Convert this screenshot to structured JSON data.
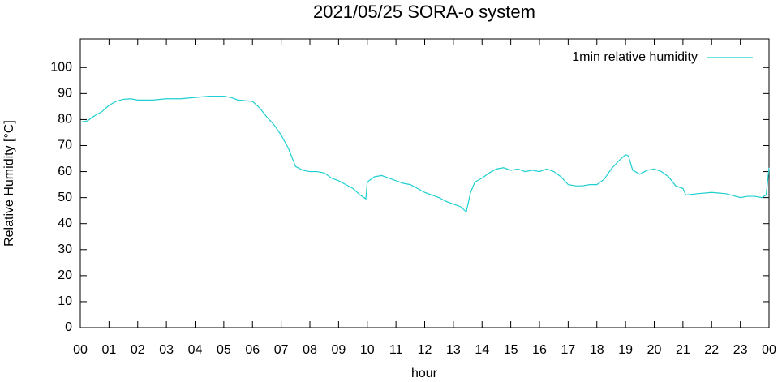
{
  "chart_data": {
    "type": "line",
    "title": "2021/05/25 SORA-o system",
    "xlabel": "hour",
    "ylabel": "Relative Humidity [°C]",
    "xlim": [
      0,
      24
    ],
    "ylim": [
      0,
      111
    ],
    "xticks": [
      {
        "value": 0,
        "label": "00"
      },
      {
        "value": 1,
        "label": "01"
      },
      {
        "value": 2,
        "label": "02"
      },
      {
        "value": 3,
        "label": "03"
      },
      {
        "value": 4,
        "label": "04"
      },
      {
        "value": 5,
        "label": "05"
      },
      {
        "value": 6,
        "label": "06"
      },
      {
        "value": 7,
        "label": "07"
      },
      {
        "value": 8,
        "label": "08"
      },
      {
        "value": 9,
        "label": "09"
      },
      {
        "value": 10,
        "label": "10"
      },
      {
        "value": 11,
        "label": "11"
      },
      {
        "value": 12,
        "label": "12"
      },
      {
        "value": 13,
        "label": "13"
      },
      {
        "value": 14,
        "label": "14"
      },
      {
        "value": 15,
        "label": "15"
      },
      {
        "value": 16,
        "label": "16"
      },
      {
        "value": 17,
        "label": "17"
      },
      {
        "value": 18,
        "label": "18"
      },
      {
        "value": 19,
        "label": "19"
      },
      {
        "value": 20,
        "label": "20"
      },
      {
        "value": 21,
        "label": "21"
      },
      {
        "value": 22,
        "label": "22"
      },
      {
        "value": 23,
        "label": "23"
      },
      {
        "value": 24,
        "label": "00"
      }
    ],
    "yticks": [
      0,
      10,
      20,
      30,
      40,
      50,
      60,
      70,
      80,
      90,
      100
    ],
    "legend": "top-right",
    "grid": false,
    "x": [
      0,
      0.25,
      0.5,
      0.75,
      1,
      1.25,
      1.5,
      1.75,
      2,
      2.5,
      3,
      3.5,
      4,
      4.5,
      5,
      5.25,
      5.5,
      6,
      6.25,
      6.5,
      6.75,
      7,
      7.25,
      7.5,
      7.75,
      8,
      8.25,
      8.5,
      8.75,
      9,
      9.25,
      9.5,
      9.75,
      9.95,
      10,
      10.25,
      10.5,
      10.75,
      11,
      11.25,
      11.5,
      11.75,
      12,
      12.25,
      12.5,
      12.75,
      13,
      13.25,
      13.45,
      13.6,
      13.75,
      14,
      14.25,
      14.5,
      14.75,
      15,
      15.25,
      15.5,
      15.75,
      16,
      16.25,
      16.5,
      16.75,
      17,
      17.25,
      17.5,
      17.75,
      18,
      18.25,
      18.5,
      18.75,
      19,
      19.1,
      19.25,
      19.5,
      19.75,
      20,
      20.25,
      20.5,
      20.75,
      21,
      21.1,
      21.5,
      22,
      22.5,
      23,
      23.25,
      23.5,
      23.75,
      23.9,
      24
    ],
    "series": [
      {
        "name": "1min relative humidity",
        "color": "#1fcfcf",
        "values": [
          79,
          79.5,
          81.5,
          83,
          85.5,
          87,
          87.8,
          88,
          87.5,
          87.5,
          88,
          88,
          88.5,
          89,
          89,
          88.5,
          87.5,
          87,
          84.5,
          81,
          78,
          74,
          69,
          62,
          60.5,
          60,
          60,
          59.5,
          57.5,
          56.5,
          55,
          53.5,
          51,
          49.5,
          56,
          58,
          58.5,
          57.5,
          56.5,
          55.5,
          55,
          53.5,
          52,
          51,
          50,
          48.5,
          47.5,
          46.5,
          44.5,
          52,
          56,
          57.5,
          59.5,
          61,
          61.5,
          60.5,
          61,
          60,
          60.5,
          60,
          61,
          60,
          58,
          55,
          54.5,
          54.5,
          55,
          55,
          57,
          61,
          64,
          66.5,
          66,
          60.5,
          59,
          60.5,
          61,
          60,
          58,
          54.5,
          53.5,
          51,
          51.5,
          52,
          51.5,
          50,
          50.5,
          50.5,
          50,
          51,
          61.5
        ]
      }
    ]
  }
}
